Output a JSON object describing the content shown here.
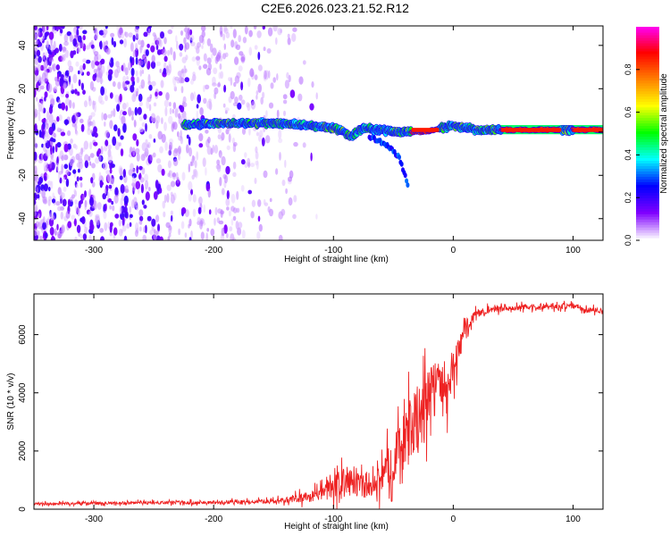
{
  "figure_title": "C2E6.2026.023.21.52.R12",
  "chart_data": [
    {
      "type": "heatmap",
      "title": "C2E6.2026.023.21.52.R12",
      "xlabel": "Height of straight line (km)",
      "ylabel": "Frequency (Hz)",
      "xlim": [
        -350,
        125
      ],
      "ylim": [
        -50,
        49
      ],
      "xticks": [
        -300,
        -200,
        -100,
        0,
        100
      ],
      "yticks": [
        -40,
        -20,
        0,
        20,
        40
      ],
      "grid": false,
      "colorbar": {
        "label": "Normalized spectral amplitude",
        "range": [
          0,
          1
        ],
        "ticks": [
          0.0,
          0.2,
          0.4,
          0.6,
          0.8
        ],
        "tick_labels": [
          "0.0",
          "0.2",
          "0.4",
          "0.6",
          "0.8"
        ],
        "colormap": [
          "#ffffff",
          "#7f00ff",
          "#0000ff",
          "#00ffff",
          "#00ff00",
          "#ffff00",
          "#ff7f00",
          "#ff0000",
          "#ff00ff"
        ]
      },
      "features": {
        "noise_region_x": [
          -350,
          -130
        ],
        "noise_amplitude": 0.3,
        "carrier_line": [
          {
            "x": -225,
            "f": 3
          },
          {
            "x": -200,
            "f": 4
          },
          {
            "x": -150,
            "f": 4
          },
          {
            "x": -120,
            "f": 3
          },
          {
            "x": -100,
            "f": 2
          },
          {
            "x": -85,
            "f": -2
          },
          {
            "x": -75,
            "f": 2
          },
          {
            "x": -50,
            "f": 0
          },
          {
            "x": -25,
            "f": 0
          },
          {
            "x": 0,
            "f": 3
          },
          {
            "x": 20,
            "f": 1
          },
          {
            "x": 125,
            "f": 1
          }
        ],
        "side_branch": [
          {
            "x": -70,
            "f": -2
          },
          {
            "x": -55,
            "f": -6
          },
          {
            "x": -45,
            "f": -12
          },
          {
            "x": -38,
            "f": -24
          }
        ],
        "saturated_segments": [
          [
            -35,
            -12
          ],
          [
            40,
            90
          ],
          [
            100,
            125
          ]
        ]
      }
    },
    {
      "type": "line",
      "xlabel": "Height of straight line (km)",
      "ylabel": "SNR (10 * v/v)",
      "xlim": [
        -350,
        125
      ],
      "ylim": [
        0,
        7400
      ],
      "xticks": [
        -300,
        -200,
        -100,
        0,
        100
      ],
      "yticks": [
        0,
        2000,
        4000,
        6000
      ],
      "color": "#ee2222",
      "grid": false,
      "series": [
        {
          "name": "SNR",
          "x": [
            -350,
            -300,
            -250,
            -200,
            -160,
            -140,
            -120,
            -110,
            -100,
            -90,
            -80,
            -70,
            -60,
            -50,
            -45,
            -40,
            -35,
            -30,
            -25,
            -20,
            -15,
            -10,
            -5,
            0,
            5,
            10,
            15,
            20,
            30,
            40,
            60,
            80,
            100,
            110,
            125
          ],
          "values": [
            180,
            200,
            220,
            230,
            260,
            300,
            420,
            550,
            800,
            1000,
            850,
            600,
            1100,
            1700,
            2100,
            2400,
            2800,
            3000,
            3200,
            4000,
            4500,
            4300,
            3900,
            4800,
            5400,
            6400,
            6500,
            6700,
            6850,
            6900,
            6950,
            6950,
            7000,
            6850,
            6850
          ],
          "noise_amplitude": [
            80,
            80,
            90,
            100,
            110,
            160,
            320,
            420,
            650,
            700,
            650,
            500,
            900,
            1300,
            1500,
            1700,
            1800,
            1900,
            2000,
            1400,
            1300,
            1200,
            1100,
            1000,
            900,
            500,
            350,
            250,
            180,
            160,
            150,
            150,
            170,
            160,
            150
          ]
        }
      ]
    }
  ]
}
